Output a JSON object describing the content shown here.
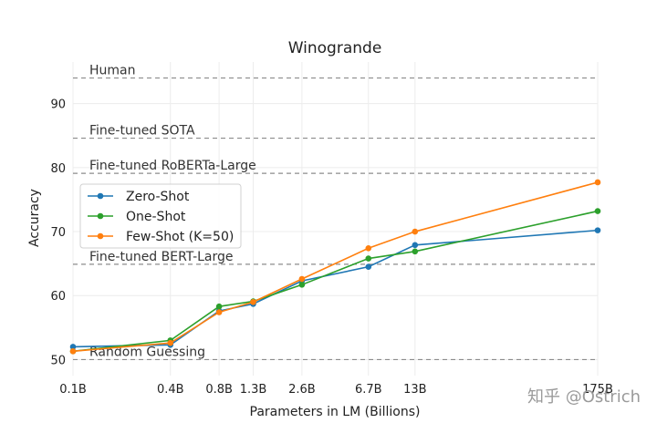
{
  "chart_data": {
    "type": "line",
    "title": "Winogrande",
    "xlabel": "Parameters in LM (Billions)",
    "ylabel": "Accuracy",
    "x_scale": "log",
    "x": [
      0.1,
      0.4,
      0.8,
      1.3,
      2.6,
      6.7,
      13,
      175
    ],
    "xtick_labels": [
      "0.1B",
      "0.4B",
      "0.8B",
      "1.3B",
      "2.6B",
      "6.7B",
      "13B",
      "175B"
    ],
    "ylim": [
      47.5,
      96.5
    ],
    "yticks": [
      50,
      60,
      70,
      80,
      90
    ],
    "grid": true,
    "legend_position": "center-left",
    "series": [
      {
        "name": "Zero-Shot",
        "color": "#1f77b4",
        "values": [
          52.0,
          52.3,
          57.6,
          58.7,
          62.3,
          64.5,
          67.9,
          70.2
        ]
      },
      {
        "name": "One-Shot",
        "color": "#2ca02c",
        "values": [
          51.3,
          53.0,
          58.3,
          59.1,
          61.7,
          65.8,
          66.9,
          73.2
        ]
      },
      {
        "name": "Few-Shot (K=50)",
        "color": "#ff7f0e",
        "values": [
          51.3,
          52.6,
          57.4,
          59.0,
          62.6,
          67.4,
          70.0,
          77.7
        ]
      }
    ],
    "reference_lines": [
      {
        "label": "Human",
        "value": 94.0
      },
      {
        "label": "Fine-tuned SOTA",
        "value": 84.6
      },
      {
        "label": "Fine-tuned RoBERTa-Large",
        "value": 79.1
      },
      {
        "label": "Fine-tuned BERT-Large",
        "value": 64.9
      },
      {
        "label": "Random Guessing",
        "value": 50.0
      }
    ]
  },
  "watermark": "知乎 @Ostrich"
}
